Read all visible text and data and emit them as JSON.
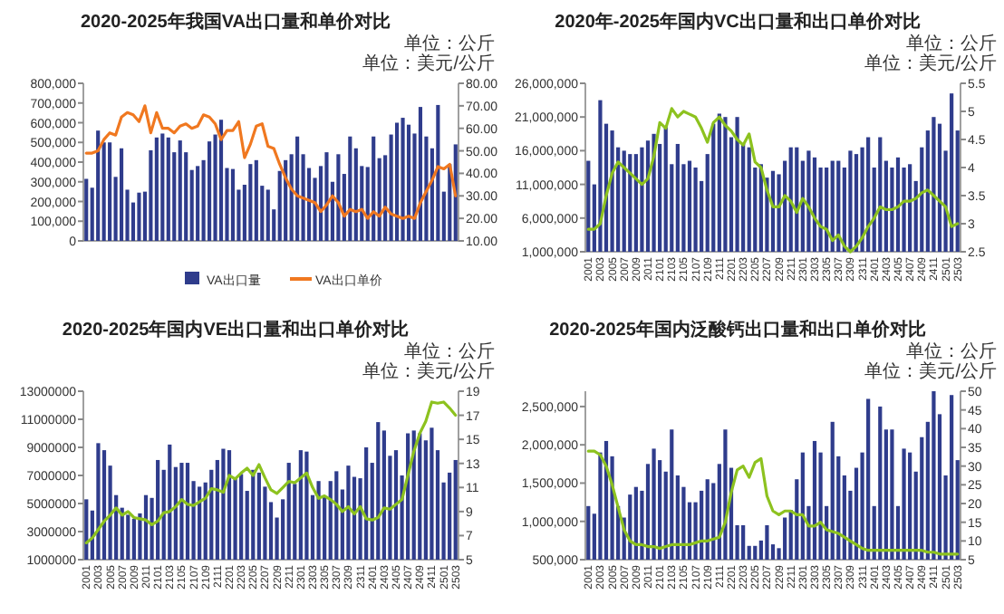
{
  "chart_data": [
    {
      "type": "bar",
      "title": "2020-2025年我国VA出口量和单价对比",
      "annotations": [
        "单位：公斤",
        "单位：美元/公斤"
      ],
      "categories": [
        null,
        null,
        null,
        null,
        null,
        null,
        null,
        null,
        null,
        null,
        null,
        null,
        null,
        null,
        null,
        null,
        null,
        null,
        null,
        null,
        null,
        null,
        null,
        null,
        null,
        null,
        null,
        null,
        null,
        null,
        null,
        null,
        null,
        null,
        null,
        null,
        null,
        null,
        null,
        null,
        null,
        null,
        null,
        null,
        null,
        null,
        null,
        null,
        null,
        null,
        null,
        null,
        null,
        null,
        null,
        null,
        null,
        null,
        null,
        null,
        null,
        null,
        null,
        null
      ],
      "series": [
        {
          "type": "bar",
          "name": "VA出口量",
          "color": "#2f3c8c",
          "values": [
            315000,
            270000,
            560000,
            500000,
            500000,
            325000,
            470000,
            260000,
            195000,
            245000,
            250000,
            460000,
            525000,
            545000,
            525000,
            450000,
            510000,
            450000,
            360000,
            380000,
            410000,
            505000,
            540000,
            615000,
            370000,
            365000,
            260000,
            285000,
            390000,
            410000,
            280000,
            260000,
            160000,
            355000,
            410000,
            440000,
            530000,
            440000,
            370000,
            320000,
            380000,
            450000,
            300000,
            440000,
            340000,
            530000,
            470000,
            380000,
            375000,
            530000,
            420000,
            435000,
            540000,
            600000,
            625000,
            590000,
            545000,
            680000,
            530000,
            470000,
            690000,
            250000,
            390000,
            490000
          ]
        },
        {
          "type": "line",
          "axis": "y2",
          "name": "VA出口单价",
          "color": "#f07820",
          "values": [
            49,
            49,
            50,
            55,
            58,
            57,
            65,
            67,
            66,
            63,
            70,
            58,
            67,
            60,
            60,
            58,
            61,
            62,
            60,
            61,
            66,
            65,
            62,
            55,
            59,
            59,
            63,
            47,
            53,
            61,
            62,
            52,
            51,
            44,
            38,
            33,
            30,
            29,
            28,
            27,
            23,
            26,
            30,
            27,
            21,
            24,
            23,
            24,
            20,
            23,
            21,
            25,
            22,
            21,
            20,
            21,
            20,
            27,
            32,
            37,
            43,
            42,
            44,
            30
          ]
        }
      ],
      "ylim": [
        0,
        800000
      ],
      "yticks": [
        0,
        {
          "value": 100000,
          "label": "100,000"
        },
        {
          "value": 200000,
          "label": "200,000"
        },
        {
          "value": 300000,
          "label": "300,000"
        },
        {
          "value": 400000,
          "label": "400,000"
        },
        {
          "value": 500000,
          "label": "500,000"
        },
        {
          "value": 600000,
          "label": "600,000"
        },
        {
          "value": 700000,
          "label": "700,000"
        },
        {
          "value": 800000,
          "label": "800,000"
        }
      ],
      "y2lim": [
        10,
        80
      ],
      "y2ticks": [
        {
          "value": 10,
          "label": "10.00"
        },
        {
          "value": 20,
          "label": "20.00"
        },
        {
          "value": 30,
          "label": "30.00"
        },
        {
          "value": 40,
          "label": "40.00"
        },
        {
          "value": 50,
          "label": "50.00"
        },
        {
          "value": 60,
          "label": "60.00"
        },
        {
          "value": 70,
          "label": "70.00"
        },
        {
          "value": 80,
          "label": "80.00"
        }
      ],
      "legend": "bottom"
    },
    {
      "type": "bar",
      "title": "2020年-2025年国内VC出口量和出口单价对比",
      "annotations": [
        "单位：公斤",
        "单位：美元/公斤"
      ],
      "categories": [
        "2001",
        null,
        "2003",
        null,
        "2005",
        null,
        "2007",
        null,
        "2009",
        null,
        "2011",
        null,
        "2101",
        null,
        "2103",
        null,
        "2105",
        null,
        "2107",
        null,
        "2109",
        null,
        "2111",
        null,
        "2201",
        null,
        "2203",
        null,
        "2205",
        null,
        "2207",
        null,
        "2209",
        null,
        "2211",
        null,
        "2301",
        null,
        "2303",
        null,
        "2305",
        null,
        "2307",
        null,
        "2309",
        null,
        "2311",
        null,
        "2401",
        null,
        "2403",
        null,
        "2405",
        null,
        "2407",
        null,
        "2409",
        null,
        "2411",
        null,
        "2501",
        null,
        "2503"
      ],
      "series": [
        {
          "type": "bar",
          "color": "#2f3c8c",
          "values": [
            14500000,
            11000000,
            23500000,
            20000000,
            19000000,
            16500000,
            16000000,
            15500000,
            15500000,
            16500000,
            17500000,
            18500000,
            17000000,
            19500000,
            14000000,
            17000000,
            14000000,
            14500000,
            13500000,
            11500000,
            15500000,
            20000000,
            21500000,
            21000000,
            18000000,
            21000000,
            17000000,
            16500000,
            13500000,
            14000000,
            12000000,
            13000000,
            12500000,
            14500000,
            16500000,
            16500000,
            14500000,
            16000000,
            15000000,
            13500000,
            13500000,
            14500000,
            14500000,
            13500000,
            16000000,
            15500000,
            16500000,
            18000000,
            13500000,
            18000000,
            14500000,
            13500000,
            15000000,
            13500000,
            14000000,
            11500000,
            16500000,
            19000000,
            21000000,
            20000000,
            16000000,
            24500000,
            19000000
          ]
        },
        {
          "type": "line",
          "axis": "y2",
          "color": "#8dc21f",
          "values": [
            2.9,
            2.9,
            3.0,
            3.5,
            3.9,
            4.1,
            4.0,
            3.9,
            3.8,
            3.7,
            3.8,
            4.2,
            4.8,
            4.7,
            5.05,
            4.9,
            5.0,
            4.95,
            4.9,
            4.7,
            4.45,
            4.8,
            4.9,
            4.75,
            4.65,
            4.5,
            4.4,
            4.6,
            4.1,
            4.0,
            3.6,
            3.3,
            3.3,
            3.5,
            3.4,
            3.2,
            3.45,
            3.3,
            3.1,
            2.95,
            2.9,
            2.7,
            2.8,
            2.6,
            2.5,
            2.6,
            2.75,
            2.95,
            3.1,
            3.3,
            3.25,
            3.25,
            3.3,
            3.4,
            3.4,
            3.45,
            3.55,
            3.6,
            3.5,
            3.4,
            3.3,
            2.95,
            3.0
          ]
        }
      ],
      "ylim": [
        1000000,
        26000000
      ],
      "yticks": [
        {
          "value": 1000000,
          "label": "1,000,000"
        },
        {
          "value": 6000000,
          "label": "6,000,000"
        },
        {
          "value": 11000000,
          "label": "11,000,000"
        },
        {
          "value": 16000000,
          "label": "16,000,000"
        },
        {
          "value": 21000000,
          "label": "21,000,000"
        },
        {
          "value": 26000000,
          "label": "26,000,000"
        }
      ],
      "y2lim": [
        2.5,
        5.5
      ],
      "y2ticks": [
        2.5,
        3,
        3.5,
        4,
        4.5,
        5,
        5.5
      ]
    },
    {
      "type": "bar",
      "title": "2020-2025年国内VE出口量和出口单价对比",
      "annotations": [
        "单位：公斤",
        "单位：美元/公斤"
      ],
      "categories": [
        "2001",
        null,
        "2003",
        null,
        "2005",
        null,
        "2007",
        null,
        "2009",
        null,
        "2011",
        null,
        "2101",
        null,
        "2103",
        null,
        "2105",
        null,
        "2107",
        null,
        "2109",
        null,
        "2111",
        null,
        "2201",
        null,
        "2203",
        null,
        "2205",
        null,
        "2207",
        null,
        "2209",
        null,
        "2211",
        null,
        "2301",
        null,
        "2303",
        null,
        "2305",
        null,
        "2307",
        null,
        "2309",
        null,
        "2311",
        null,
        "2401",
        null,
        "2403",
        null,
        "2405",
        null,
        "2407",
        null,
        "2409",
        null,
        "2411",
        null,
        "2501",
        null,
        "2503"
      ],
      "series": [
        {
          "type": "bar",
          "color": "#2f3c8c",
          "values": [
            5300000,
            4500000,
            9300000,
            8800000,
            7700000,
            5600000,
            4700000,
            4200000,
            3900000,
            4300000,
            5600000,
            5400000,
            8100000,
            7400000,
            9200000,
            7600000,
            7900000,
            7900000,
            6600000,
            6200000,
            6500000,
            7400000,
            8100000,
            8900000,
            8800000,
            6800000,
            7100000,
            5900000,
            7400000,
            7200000,
            6200000,
            5100000,
            4000000,
            5300000,
            7900000,
            6400000,
            8800000,
            8700000,
            5600000,
            6600000,
            5500000,
            6600000,
            7300000,
            6000000,
            7700000,
            6900000,
            6800000,
            9000000,
            7900000,
            10800000,
            10200000,
            8400000,
            8800000,
            7000000,
            10000000,
            10200000,
            10000000,
            9500000,
            10400000,
            8800000,
            6500000,
            7200000,
            8100000
          ]
        },
        {
          "type": "line",
          "axis": "y2",
          "color": "#8dc21f",
          "values": [
            6.4,
            6.8,
            7.5,
            8.2,
            8.7,
            9.3,
            8.7,
            9.0,
            8.5,
            8.4,
            8.3,
            7.9,
            8.2,
            8.9,
            9.0,
            9.4,
            10.0,
            9.6,
            9.5,
            9.8,
            10.1,
            10.9,
            10.8,
            10.6,
            12.0,
            11.7,
            12.2,
            12.6,
            12.0,
            12.9,
            11.8,
            10.8,
            10.5,
            11.0,
            11.5,
            11.4,
            11.8,
            12.2,
            11.0,
            10.1,
            10.3,
            10.0,
            9.6,
            9.0,
            9.4,
            8.8,
            9.4,
            8.4,
            8.3,
            8.5,
            9.3,
            9.2,
            9.6,
            10.0,
            12.0,
            14.0,
            15.5,
            16.5,
            18.1,
            18.0,
            18.1,
            17.6,
            17.0
          ]
        }
      ],
      "ylim": [
        1000000,
        13000000
      ],
      "yticks": [
        1000000,
        3000000,
        5000000,
        7000000,
        9000000,
        11000000,
        13000000
      ],
      "y2lim": [
        5,
        19
      ],
      "y2ticks": [
        5,
        7,
        9,
        11,
        13,
        15,
        17,
        19
      ]
    },
    {
      "type": "bar",
      "title": "2020-2025年国内泛酸钙出口量和出口单价对比",
      "annotations": [
        "单位：公斤",
        "单位：美元/公斤"
      ],
      "categories": [
        "2001",
        null,
        "2003",
        null,
        "2005",
        null,
        "2007",
        null,
        "2009",
        null,
        "2011",
        null,
        "2101",
        null,
        "2103",
        null,
        "2105",
        null,
        "2107",
        null,
        "2109",
        null,
        "2111",
        null,
        "2201",
        null,
        "2203",
        null,
        "2205",
        null,
        "2207",
        null,
        "2209",
        null,
        "2211",
        null,
        "2301",
        null,
        "2303",
        null,
        "2305",
        null,
        "2307",
        null,
        "2309",
        null,
        "2311",
        null,
        "2401",
        null,
        "2403",
        null,
        "2405",
        null,
        "2407",
        null,
        "2409",
        null,
        "2411",
        null,
        "2501",
        null,
        "2503"
      ],
      "series": [
        {
          "type": "bar",
          "color": "#2f3c8c",
          "values": [
            1200000,
            1100000,
            1900000,
            2050000,
            1850000,
            1200000,
            1050000,
            1350000,
            1450000,
            1400000,
            1750000,
            1950000,
            1800000,
            1650000,
            2200000,
            1600000,
            1450000,
            1250000,
            1250000,
            1400000,
            1550000,
            1500000,
            1750000,
            2200000,
            1700000,
            950000,
            950000,
            680000,
            680000,
            750000,
            950000,
            700000,
            650000,
            1050000,
            1150000,
            1550000,
            1900000,
            1200000,
            2050000,
            1900000,
            1200000,
            2300000,
            1850000,
            1600000,
            1400000,
            1700000,
            1900000,
            2600000,
            1200000,
            2500000,
            2200000,
            2200000,
            1200000,
            1950000,
            1900000,
            1650000,
            2100000,
            2300000,
            2700000,
            2400000,
            1600000,
            2650000,
            1800000
          ]
        },
        {
          "type": "line",
          "axis": "y2",
          "color": "#8dc21f",
          "values": [
            34,
            34,
            33,
            30,
            25,
            19,
            13,
            10,
            9,
            9,
            8.5,
            8.5,
            8,
            8.5,
            9,
            9,
            9,
            9,
            9.5,
            10,
            10,
            10.5,
            11,
            15,
            23,
            29,
            30,
            27,
            31,
            32,
            22,
            18,
            17,
            18,
            18,
            17,
            17,
            14,
            14,
            15,
            13,
            12.5,
            12,
            11,
            10,
            9,
            8,
            7.5,
            7.5,
            7.5,
            7.5,
            7.5,
            7.5,
            7.5,
            7.5,
            7.5,
            7.5,
            7,
            7,
            6.5,
            6.5,
            6.5,
            6.5
          ]
        }
      ],
      "ylim": [
        500000,
        2700000
      ],
      "yticks": [
        {
          "value": 500000,
          "label": "500,000"
        },
        {
          "value": 1000000,
          "label": "1,000,000"
        },
        {
          "value": 1500000,
          "label": "1,500,000"
        },
        {
          "value": 2000000,
          "label": "2,000,000"
        },
        {
          "value": 2500000,
          "label": "2,500,000"
        }
      ],
      "y2lim": [
        5,
        50
      ],
      "y2ticks": [
        5,
        10,
        15,
        20,
        25,
        30,
        35,
        40,
        45,
        50
      ]
    }
  ]
}
